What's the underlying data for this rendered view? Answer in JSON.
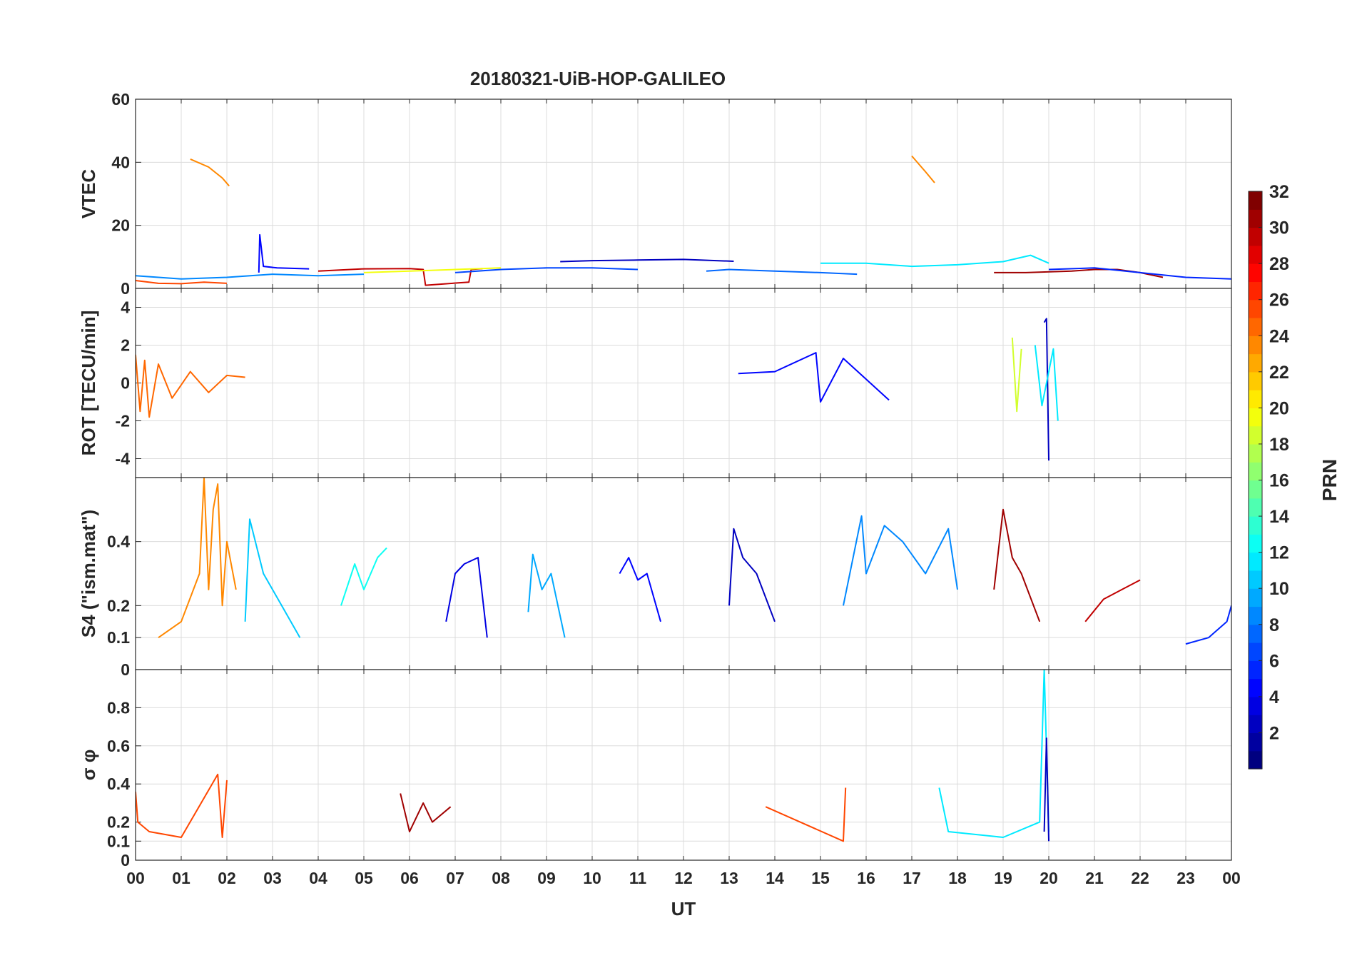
{
  "chart_data": {
    "type": "line",
    "title": "20180321-UiB-HOP-GALILEO",
    "xlabel": "UT",
    "x_ticks": [
      "00",
      "01",
      "02",
      "03",
      "04",
      "05",
      "06",
      "07",
      "08",
      "09",
      "10",
      "11",
      "12",
      "13",
      "14",
      "15",
      "16",
      "17",
      "18",
      "19",
      "20",
      "21",
      "22",
      "23",
      "00"
    ],
    "xlim": [
      0,
      24
    ],
    "grid": true,
    "colorbar": {
      "label": "PRN",
      "range": [
        1,
        32
      ],
      "ticks": [
        "2",
        "4",
        "6",
        "8",
        "10",
        "12",
        "14",
        "16",
        "18",
        "20",
        "22",
        "24",
        "26",
        "28",
        "30",
        "32"
      ],
      "colormap": "jet"
    },
    "panels": [
      {
        "ylabel": "VTEC",
        "ylim": [
          0,
          60
        ],
        "yticks": [
          "0",
          "20",
          "40",
          "60"
        ],
        "series": [
          {
            "prn": 24,
            "x": [
              1.2,
              1.6,
              1.9,
              2.05
            ],
            "y": [
              41,
              38.5,
              35,
              32.5
            ]
          },
          {
            "prn": 24,
            "x": [
              17.0,
              17.3,
              17.5
            ],
            "y": [
              42,
              37,
              33.5
            ]
          },
          {
            "prn": 5,
            "x": [
              2.7,
              2.72,
              2.8,
              3.1,
              3.8
            ],
            "y": [
              5,
              17,
              7,
              6.5,
              6.2
            ]
          },
          {
            "prn": 30,
            "x": [
              4.0,
              5.0,
              6.0,
              6.3,
              6.35,
              7.3,
              7.35,
              7.6
            ],
            "y": [
              5.5,
              6.2,
              6.3,
              6.0,
              1.0,
              2.0,
              6.0,
              6.3
            ]
          },
          {
            "prn": 20,
            "x": [
              5.0,
              6.0,
              7.0,
              8.0
            ],
            "y": [
              5.0,
              5.5,
              6.0,
              6.5
            ]
          },
          {
            "prn": 3,
            "x": [
              9.3,
              10.0,
              11.0,
              12.0,
              13.1
            ],
            "y": [
              8.5,
              8.8,
              9.0,
              9.2,
              8.6
            ]
          },
          {
            "prn": 7,
            "x": [
              7.0,
              8.0,
              9.0,
              10.0,
              11.0
            ],
            "y": [
              5.0,
              6.0,
              6.5,
              6.5,
              6.0
            ]
          },
          {
            "prn": 26,
            "x": [
              0.0,
              0.5,
              1.0,
              1.5,
              2.0
            ],
            "y": [
              2.5,
              1.6,
              1.5,
              2.0,
              1.6
            ]
          },
          {
            "prn": 9,
            "x": [
              0.0,
              1.0,
              2.0,
              3.0,
              4.0,
              5.0
            ],
            "y": [
              4.0,
              3.0,
              3.5,
              4.5,
              4.0,
              4.5
            ]
          },
          {
            "prn": 12,
            "x": [
              15.0,
              16.0,
              17.0,
              18.0,
              19.0,
              19.6,
              20.0
            ],
            "y": [
              8.0,
              8.0,
              7.0,
              7.5,
              8.5,
              10.5,
              8.0
            ]
          },
          {
            "prn": 31,
            "x": [
              18.8,
              19.5,
              20.5,
              21.0,
              21.5,
              22.0,
              22.5
            ],
            "y": [
              5.0,
              5.0,
              5.5,
              6.0,
              6.0,
              5.0,
              3.5
            ]
          },
          {
            "prn": 6,
            "x": [
              20.0,
              21.0,
              22.0,
              23.0,
              24.0
            ],
            "y": [
              6.0,
              6.5,
              5.0,
              3.5,
              3.0
            ]
          },
          {
            "prn": 8,
            "x": [
              12.5,
              13.0,
              14.0,
              15.0,
              15.8
            ],
            "y": [
              5.5,
              6.0,
              5.5,
              5.0,
              4.5
            ]
          }
        ]
      },
      {
        "ylabel": "ROT [TECU/min]",
        "ylim": [
          -5,
          5
        ],
        "yticks": [
          "-4",
          "-2",
          "0",
          "2",
          "4"
        ],
        "series": [
          {
            "prn": 25,
            "x": [
              0.0,
              0.1,
              0.2,
              0.3,
              0.5,
              0.8,
              1.2,
              1.6,
              2.0,
              2.4
            ],
            "y": [
              1.5,
              -1.5,
              1.2,
              -1.8,
              1.0,
              -0.8,
              0.6,
              -0.5,
              0.4,
              0.3
            ]
          },
          {
            "prn": 5,
            "x": [
              13.2,
              14.0,
              14.9,
              15.0,
              15.5,
              16.5
            ],
            "y": [
              0.5,
              0.6,
              1.6,
              -1.0,
              1.3,
              -0.9
            ]
          },
          {
            "prn": 3,
            "x": [
              19.9,
              19.95,
              20.0
            ],
            "y": [
              3.2,
              3.4,
              -4.1
            ]
          },
          {
            "prn": 12,
            "x": [
              19.7,
              19.85,
              20.1,
              20.2
            ],
            "y": [
              2.0,
              -1.2,
              1.8,
              -2.0
            ]
          },
          {
            "prn": 19,
            "x": [
              19.2,
              19.3,
              19.4
            ],
            "y": [
              2.4,
              -1.5,
              1.8
            ]
          }
        ]
      },
      {
        "ylabel": "S4 (\"ism.mat\")",
        "ylim": [
          0,
          0.6
        ],
        "yticks": [
          "0",
          "0.1",
          "0.2",
          "0.4"
        ],
        "series": [
          {
            "prn": 24,
            "x": [
              0.5,
              1.0,
              1.4,
              1.5,
              1.6,
              1.7,
              1.8,
              1.9,
              2.0,
              2.2
            ],
            "y": [
              0.1,
              0.15,
              0.3,
              0.6,
              0.25,
              0.5,
              0.58,
              0.2,
              0.4,
              0.25
            ]
          },
          {
            "prn": 11,
            "x": [
              2.4,
              2.5,
              2.8,
              3.2,
              3.6
            ],
            "y": [
              0.15,
              0.47,
              0.3,
              0.2,
              0.1
            ]
          },
          {
            "prn": 13,
            "x": [
              4.5,
              4.8,
              5.0,
              5.3,
              5.5
            ],
            "y": [
              0.2,
              0.33,
              0.25,
              0.35,
              0.38
            ]
          },
          {
            "prn": 4,
            "x": [
              6.8,
              7.0,
              7.2,
              7.5,
              7.7
            ],
            "y": [
              0.15,
              0.3,
              0.33,
              0.35,
              0.1
            ]
          },
          {
            "prn": 10,
            "x": [
              8.6,
              8.7,
              8.9,
              9.1,
              9.4
            ],
            "y": [
              0.18,
              0.36,
              0.25,
              0.3,
              0.1
            ]
          },
          {
            "prn": 5,
            "x": [
              10.6,
              10.8,
              11.0,
              11.2,
              11.5
            ],
            "y": [
              0.3,
              0.35,
              0.28,
              0.3,
              0.15
            ]
          },
          {
            "prn": 3,
            "x": [
              13.0,
              13.1,
              13.3,
              13.6,
              14.0
            ],
            "y": [
              0.2,
              0.44,
              0.35,
              0.3,
              0.15
            ]
          },
          {
            "prn": 9,
            "x": [
              15.5,
              15.9,
              16.0,
              16.4,
              16.8,
              17.3,
              17.8,
              18.0
            ],
            "y": [
              0.2,
              0.48,
              0.3,
              0.45,
              0.4,
              0.3,
              0.44,
              0.25
            ]
          },
          {
            "prn": 31,
            "x": [
              18.8,
              19.0,
              19.2,
              19.4,
              19.8
            ],
            "y": [
              0.25,
              0.5,
              0.35,
              0.3,
              0.15
            ]
          },
          {
            "prn": 30,
            "x": [
              20.8,
              21.2,
              21.6,
              22.0
            ],
            "y": [
              0.15,
              0.22,
              0.25,
              0.28
            ]
          },
          {
            "prn": 6,
            "x": [
              23.0,
              23.5,
              23.9,
              24.0
            ],
            "y": [
              0.08,
              0.1,
              0.15,
              0.2
            ]
          }
        ]
      },
      {
        "ylabel": "σ φ",
        "ylim": [
          0,
          1
        ],
        "yticks": [
          "0",
          "0.1",
          "0.2",
          "0.4",
          "0.6",
          "0.8"
        ],
        "series": [
          {
            "prn": 26,
            "x": [
              0.0,
              0.05,
              0.3,
              1.0,
              1.8,
              1.9,
              2.0
            ],
            "y": [
              0.36,
              0.2,
              0.15,
              0.12,
              0.45,
              0.12,
              0.42
            ]
          },
          {
            "prn": 31,
            "x": [
              5.8,
              6.0,
              6.3,
              6.5,
              6.9
            ],
            "y": [
              0.35,
              0.15,
              0.3,
              0.2,
              0.28
            ]
          },
          {
            "prn": 12,
            "x": [
              17.6,
              17.8,
              19.0,
              19.8,
              19.9,
              20.0
            ],
            "y": [
              0.38,
              0.15,
              0.12,
              0.2,
              1.0,
              0.15
            ]
          },
          {
            "prn": 3,
            "x": [
              19.9,
              19.95,
              20.0
            ],
            "y": [
              0.15,
              0.64,
              0.1
            ]
          },
          {
            "prn": 26,
            "x": [
              13.8,
              15.5,
              15.55
            ],
            "y": [
              0.28,
              0.1,
              0.38
            ]
          }
        ]
      }
    ]
  }
}
